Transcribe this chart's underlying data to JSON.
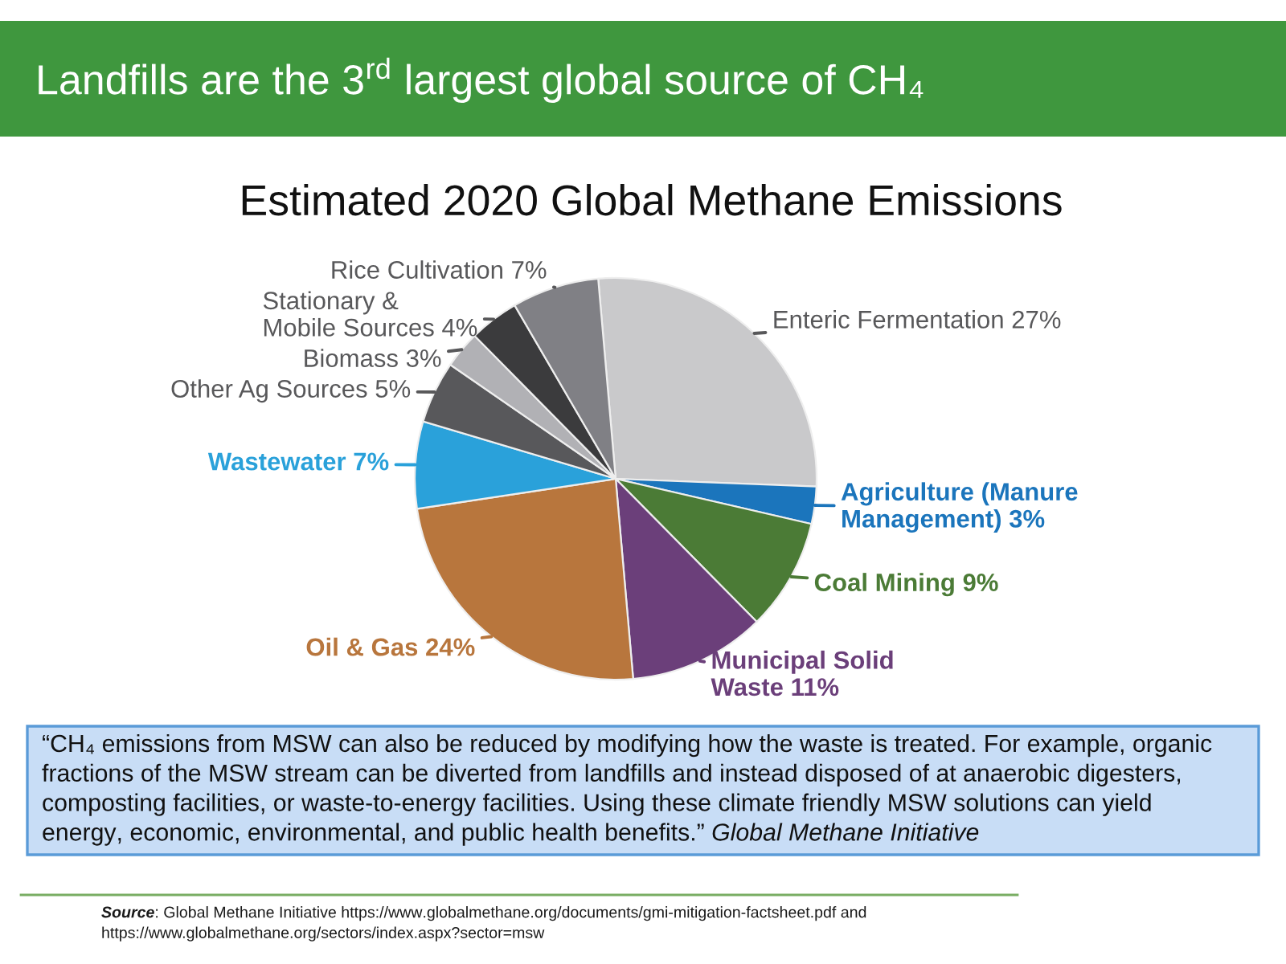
{
  "chart_data": {
    "type": "pie",
    "title": "Landfills are the 3$^{rd}$ largest global source of CH₄",
    "subtitle": "Estimated 2020 Global Methane Emissions",
    "categories": [
      "Enteric Fermentation",
      "Agriculture (Manure\nManagement)",
      "Coal Mining",
      "Municipal Solid\nWaste",
      "Oil & Gas",
      "Wastewater",
      "Other Ag Sources",
      "Biomass",
      "Stationary &\nMobile Sources",
      "Rice Cultivation"
    ],
    "values": [
      27,
      3,
      9,
      11,
      24,
      7,
      5,
      3,
      4,
      7
    ],
    "value_labels": [
      "27%",
      "3%",
      "9%",
      "11%",
      "24%",
      "7%",
      "5%",
      "3%",
      "4%",
      "7%"
    ],
    "colors": [
      "#c9c9cb",
      "#1b75bc",
      "#4b7b36",
      "#6b3f7a",
      "#b8763d",
      "#2aa1da",
      "#58585b",
      "#b1b1b5",
      "#3b3b3d",
      "#808085"
    ],
    "annotations": [
      "“CH₄ emissions from MSW can also be reduced by modifying how the waste is treated. For example, organic\nfractions of the MSW stream can be diverted from landfills and instead disposed of at anaerobic digesters,\ncomposting facilities, or waste-to-energy facilities. Using these climate friendly MSW solutions can yield\nenergy, economic, environmental, and public health benefits.”",
      "Global Methane Initiative",
      "Source:",
      "Global Methane Initiative https://www.globalmethane.org/documents/gmi-mitigation-factsheet.pdf and\nhttps://www.globalmethane.org/sectors/index.aspx?sector=msw"
    ]
  }
}
